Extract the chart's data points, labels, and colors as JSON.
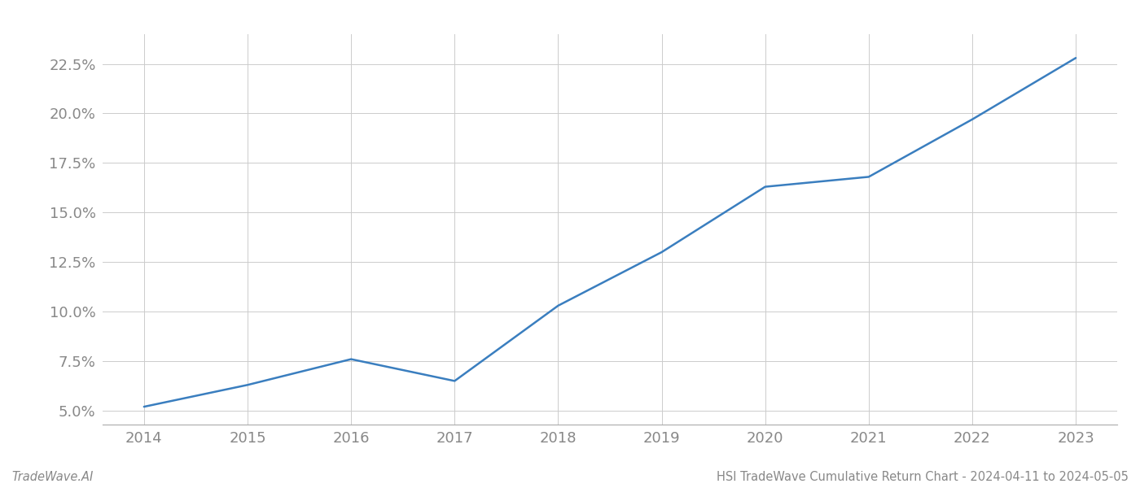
{
  "x_years": [
    2014,
    2015,
    2016,
    2017,
    2018,
    2019,
    2020,
    2021,
    2022,
    2023
  ],
  "y_values": [
    0.052,
    0.063,
    0.076,
    0.065,
    0.103,
    0.13,
    0.163,
    0.168,
    0.197,
    0.228
  ],
  "line_color": "#3a7ebf",
  "line_width": 1.8,
  "title": "HSI TradeWave Cumulative Return Chart - 2024-04-11 to 2024-05-05",
  "footer_left": "TradeWave.AI",
  "x_ticks": [
    2014,
    2015,
    2016,
    2017,
    2018,
    2019,
    2020,
    2021,
    2022,
    2023
  ],
  "y_ticks": [
    0.05,
    0.075,
    0.1,
    0.125,
    0.15,
    0.175,
    0.2,
    0.225
  ],
  "y_tick_labels": [
    "5.0%",
    "7.5%",
    "10.0%",
    "12.5%",
    "15.0%",
    "17.5%",
    "20.0%",
    "22.5%"
  ],
  "xlim": [
    2013.6,
    2023.4
  ],
  "ylim": [
    0.043,
    0.24
  ],
  "grid_color": "#cccccc",
  "background_color": "#ffffff",
  "tick_color": "#888888",
  "footer_color": "#888888",
  "tick_fontsize": 13,
  "footer_fontsize": 10.5
}
